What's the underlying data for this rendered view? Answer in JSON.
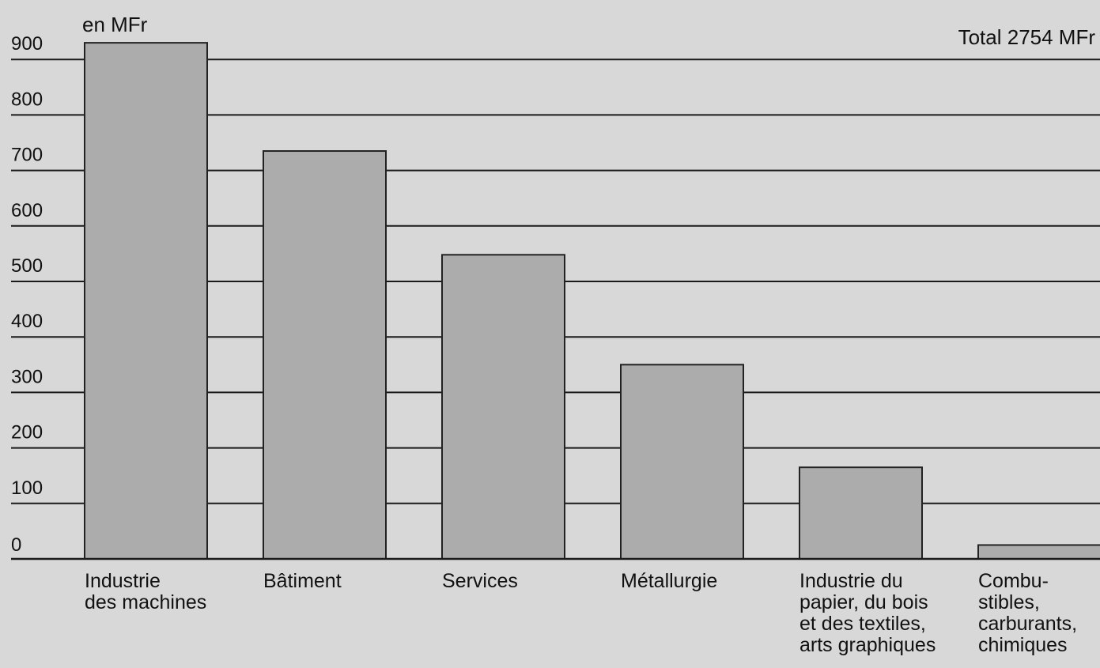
{
  "colors": {
    "background": "#d8d8d8",
    "bar_fill": "#acacac",
    "bar_stroke": "#222222",
    "grid": "#1a1a1a",
    "text": "#111111"
  },
  "chart_data": {
    "type": "bar",
    "unit_label": "en MFr",
    "total_label": "Total 2754 MFr",
    "ylim": [
      0,
      900
    ],
    "yticks": [
      "0",
      "100",
      "200",
      "300",
      "400",
      "500",
      "600",
      "700",
      "800",
      "900"
    ],
    "grid": true,
    "categories": [
      [
        "Industrie",
        "des machines"
      ],
      [
        "Bâtiment"
      ],
      [
        "Services"
      ],
      [
        "Métallurgie"
      ],
      [
        "Industrie du",
        "papier, du bois",
        "et des textiles,",
        "arts graphiques"
      ],
      [
        "Combu-",
        "stibles,",
        "carburants,",
        "chimiques"
      ]
    ],
    "values": [
      930,
      735,
      548,
      350,
      165,
      25
    ]
  }
}
